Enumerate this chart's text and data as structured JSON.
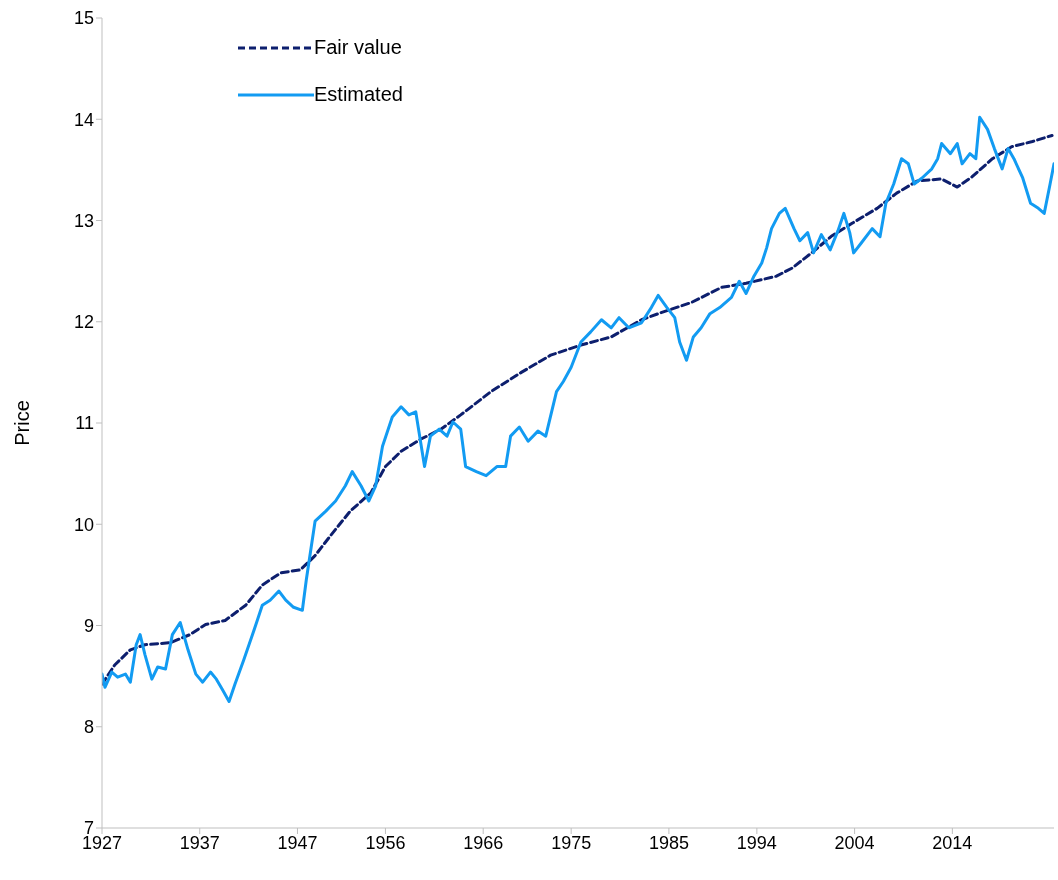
{
  "chart_data": {
    "type": "line",
    "ylabel": "Price",
    "legend": "top left",
    "marker": "none",
    "xlim": [
      1927,
      2024.4
    ],
    "ylim": [
      7,
      15
    ],
    "yticks": [
      7,
      8,
      9,
      10,
      11,
      12,
      13,
      14,
      15
    ],
    "xticks": [
      1927,
      1937,
      1947,
      1956,
      1966,
      1975,
      1985,
      1994,
      2004,
      2014
    ],
    "series": [
      {
        "name": "Fair value",
        "color": "#0d1f6e",
        "line_style": "dashed",
        "x": [
          1927.0,
          1928.3,
          1929.9,
          1931.4,
          1934.0,
          1936.0,
          1937.6,
          1939.6,
          1941.7,
          1943.4,
          1945.3,
          1947.3,
          1948.8,
          1950.4,
          1952.4,
          1954.5,
          1956.0,
          1957.6,
          1959.6,
          1961.7,
          1963.7,
          1966.8,
          1969.9,
          1972.9,
          1976.0,
          1979.1,
          1982.2,
          1984.2,
          1987.3,
          1990.4,
          1992.9,
          1996.0,
          1997.6,
          1999.6,
          2001.7,
          2003.7,
          2006.3,
          2008.3,
          2010.4,
          2012.9,
          2014.5,
          2016.0,
          2018.1,
          2020.1,
          2022.2,
          2024.2
        ],
        "values": [
          8.42,
          8.61,
          8.76,
          8.81,
          8.83,
          8.91,
          9.01,
          9.05,
          9.2,
          9.4,
          9.52,
          9.55,
          9.69,
          9.89,
          10.13,
          10.31,
          10.57,
          10.72,
          10.84,
          10.94,
          11.08,
          11.31,
          11.5,
          11.67,
          11.77,
          11.85,
          12.02,
          12.09,
          12.19,
          12.34,
          12.38,
          12.45,
          12.53,
          12.68,
          12.85,
          12.97,
          13.12,
          13.27,
          13.39,
          13.41,
          13.33,
          13.43,
          13.61,
          13.73,
          13.78,
          13.84
        ]
      },
      {
        "name": "Estimated",
        "color": "#129bf2",
        "line_style": "solid",
        "x": [
          1927.0,
          1927.3,
          1928.0,
          1928.6,
          1929.4,
          1929.9,
          1930.5,
          1930.9,
          1931.4,
          1932.1,
          1932.7,
          1933.5,
          1934.2,
          1935.0,
          1935.8,
          1936.6,
          1937.3,
          1938.1,
          1938.7,
          1939.3,
          1940.0,
          1940.6,
          1941.5,
          1942.4,
          1943.4,
          1944.2,
          1945.1,
          1945.8,
          1946.6,
          1947.5,
          1947.9,
          1948.8,
          1949.9,
          1950.9,
          1951.9,
          1952.6,
          1953.5,
          1954.3,
          1955.0,
          1955.7,
          1956.7,
          1957.6,
          1958.4,
          1959.1,
          1960.0,
          1960.6,
          1961.5,
          1962.3,
          1962.9,
          1963.7,
          1964.2,
          1965.3,
          1966.3,
          1967.4,
          1968.3,
          1968.8,
          1969.7,
          1970.6,
          1971.6,
          1972.4,
          1973.5,
          1974.2,
          1975.0,
          1976.0,
          1977.0,
          1978.1,
          1979.1,
          1979.9,
          1980.9,
          1982.2,
          1983.2,
          1983.9,
          1984.8,
          1985.6,
          1986.1,
          1986.8,
          1987.5,
          1988.3,
          1989.2,
          1990.2,
          1991.4,
          1992.2,
          1992.9,
          1993.7,
          1994.5,
          1995.0,
          1995.5,
          1996.3,
          1996.9,
          1997.8,
          1998.4,
          1999.2,
          1999.8,
          2000.6,
          2001.5,
          2002.3,
          2002.9,
          2003.5,
          2003.9,
          2004.7,
          2005.8,
          2006.6,
          2007.2,
          2008.0,
          2008.8,
          2009.5,
          2010.1,
          2010.9,
          2011.9,
          2012.5,
          2012.9,
          2013.8,
          2014.5,
          2015.0,
          2015.8,
          2016.4,
          2016.8,
          2017.6,
          2018.3,
          2019.1,
          2019.7,
          2020.3,
          2021.2,
          2022.0,
          2022.8,
          2023.4,
          2024.0,
          2024.4
        ],
        "values": [
          8.52,
          8.39,
          8.54,
          8.49,
          8.52,
          8.44,
          8.81,
          8.91,
          8.71,
          8.47,
          8.59,
          8.57,
          8.91,
          9.03,
          8.76,
          8.52,
          8.44,
          8.54,
          8.47,
          8.37,
          8.25,
          8.42,
          8.66,
          8.91,
          9.2,
          9.25,
          9.34,
          9.25,
          9.18,
          9.15,
          9.45,
          10.03,
          10.13,
          10.23,
          10.38,
          10.52,
          10.38,
          10.23,
          10.38,
          10.77,
          11.06,
          11.16,
          11.08,
          11.11,
          10.57,
          10.87,
          10.94,
          10.87,
          11.01,
          10.94,
          10.57,
          10.52,
          10.48,
          10.57,
          10.57,
          10.87,
          10.96,
          10.82,
          10.92,
          10.87,
          11.31,
          11.41,
          11.55,
          11.8,
          11.9,
          12.02,
          11.94,
          12.04,
          11.94,
          11.99,
          12.14,
          12.26,
          12.14,
          12.04,
          11.8,
          11.62,
          11.85,
          11.94,
          12.08,
          12.14,
          12.24,
          12.4,
          12.28,
          12.45,
          12.58,
          12.73,
          12.92,
          13.07,
          13.12,
          12.92,
          12.8,
          12.88,
          12.68,
          12.86,
          12.71,
          12.9,
          13.07,
          12.88,
          12.68,
          12.78,
          12.92,
          12.84,
          13.17,
          13.36,
          13.61,
          13.56,
          13.36,
          13.42,
          13.51,
          13.61,
          13.76,
          13.66,
          13.76,
          13.56,
          13.66,
          13.61,
          14.02,
          13.9,
          13.71,
          13.51,
          13.71,
          13.61,
          13.42,
          13.17,
          13.12,
          13.07,
          13.36,
          13.56
        ]
      }
    ]
  }
}
